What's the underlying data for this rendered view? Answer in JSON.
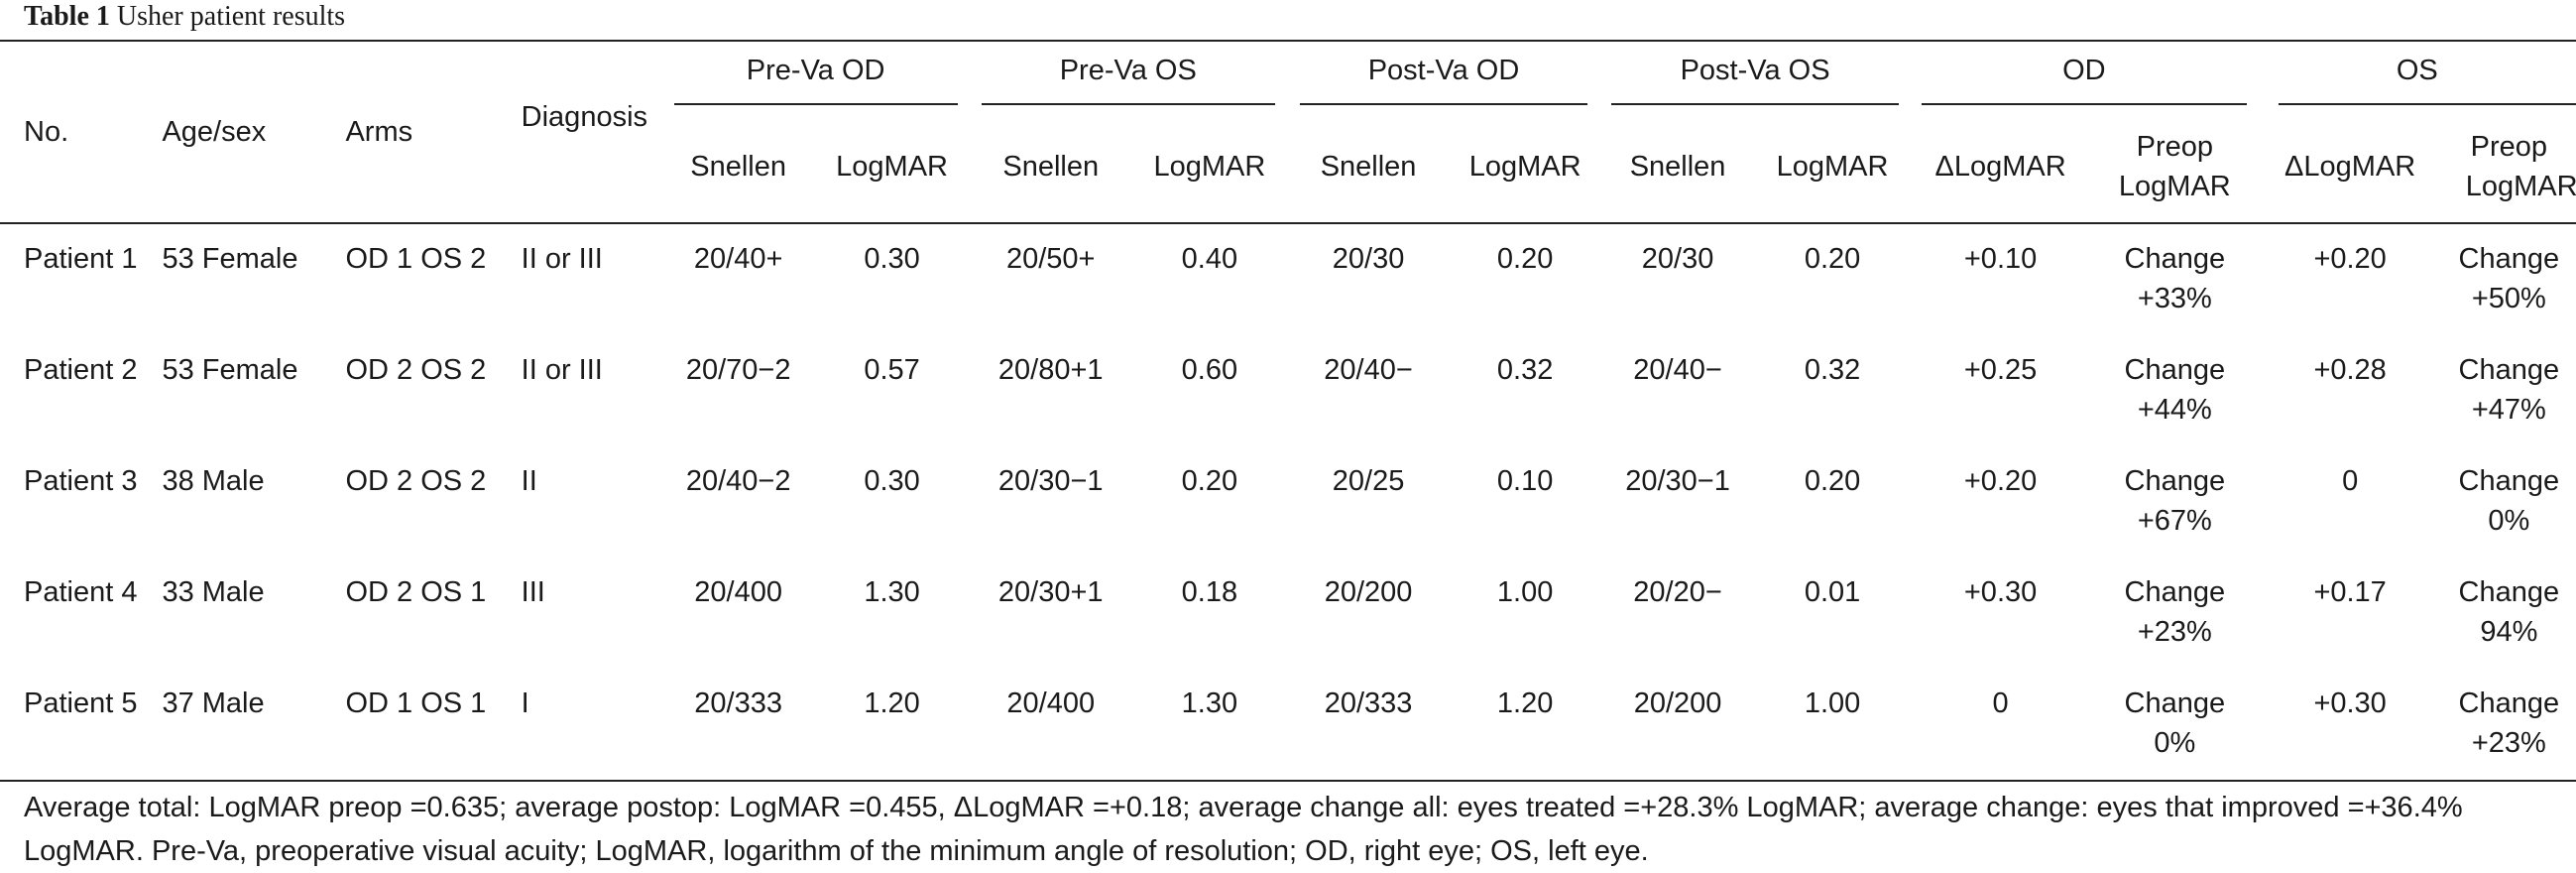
{
  "caption": {
    "number": "Table 1",
    "title": "Usher patient results"
  },
  "headers": {
    "no": "No.",
    "age_sex": "Age/sex",
    "arms": "Arms",
    "diagnosis": "Diagnosis",
    "groups": [
      "Pre-Va OD",
      "Pre-Va OS",
      "Post-Va OD",
      "Post-Va OS",
      "OD",
      "OS"
    ],
    "subheaders": [
      "Snellen",
      "LogMAR",
      "Snellen",
      "LogMAR",
      "Snellen",
      "LogMAR",
      "Snellen",
      "LogMAR",
      "ΔLogMAR",
      "Preop LogMAR",
      "ΔLogMAR",
      "Preop LogMAR"
    ]
  },
  "rows": [
    {
      "no": "Patient 1",
      "age_sex": "53 Female",
      "arms": "OD 1 OS 2",
      "diagnosis": "II or III",
      "pre_od_snellen": "20/40+",
      "pre_od_logmar": "0.30",
      "pre_os_snellen": "20/50+",
      "pre_os_logmar": "0.40",
      "post_od_snellen": "20/30",
      "post_od_logmar": "0.20",
      "post_os_snellen": "20/30",
      "post_os_logmar": "0.20",
      "od_delta": "+0.10",
      "od_preop_1": "Change",
      "od_preop_2": "+33%",
      "os_delta": "+0.20",
      "os_preop_1": "Change",
      "os_preop_2": "+50%"
    },
    {
      "no": "Patient 2",
      "age_sex": "53 Female",
      "arms": "OD 2 OS 2",
      "diagnosis": "II or III",
      "pre_od_snellen": "20/70−2",
      "pre_od_logmar": "0.57",
      "pre_os_snellen": "20/80+1",
      "pre_os_logmar": "0.60",
      "post_od_snellen": "20/40−",
      "post_od_logmar": "0.32",
      "post_os_snellen": "20/40−",
      "post_os_logmar": "0.32",
      "od_delta": "+0.25",
      "od_preop_1": "Change",
      "od_preop_2": "+44%",
      "os_delta": "+0.28",
      "os_preop_1": "Change",
      "os_preop_2": "+47%"
    },
    {
      "no": "Patient 3",
      "age_sex": "38 Male",
      "arms": "OD 2 OS 2",
      "diagnosis": "II",
      "pre_od_snellen": "20/40−2",
      "pre_od_logmar": "0.30",
      "pre_os_snellen": "20/30−1",
      "pre_os_logmar": "0.20",
      "post_od_snellen": "20/25",
      "post_od_logmar": "0.10",
      "post_os_snellen": "20/30−1",
      "post_os_logmar": "0.20",
      "od_delta": "+0.20",
      "od_preop_1": "Change",
      "od_preop_2": "+67%",
      "os_delta": "0",
      "os_preop_1": "Change",
      "os_preop_2": "0%"
    },
    {
      "no": "Patient 4",
      "age_sex": "33 Male",
      "arms": "OD 2 OS 1",
      "diagnosis": "III",
      "pre_od_snellen": "20/400",
      "pre_od_logmar": "1.30",
      "pre_os_snellen": "20/30+1",
      "pre_os_logmar": "0.18",
      "post_od_snellen": "20/200",
      "post_od_logmar": "1.00",
      "post_os_snellen": "20/20−",
      "post_os_logmar": "0.01",
      "od_delta": "+0.30",
      "od_preop_1": "Change",
      "od_preop_2": "+23%",
      "os_delta": "+0.17",
      "os_preop_1": "Change",
      "os_preop_2": "94%"
    },
    {
      "no": "Patient 5",
      "age_sex": "37 Male",
      "arms": "OD 1 OS 1",
      "diagnosis": "I",
      "pre_od_snellen": "20/333",
      "pre_od_logmar": "1.20",
      "pre_os_snellen": "20/400",
      "pre_os_logmar": "1.30",
      "post_od_snellen": "20/333",
      "post_od_logmar": "1.20",
      "post_os_snellen": "20/200",
      "post_os_logmar": "1.00",
      "od_delta": "0",
      "od_preop_1": "Change",
      "od_preop_2": "0%",
      "os_delta": "+0.30",
      "os_preop_1": "Change",
      "os_preop_2": "+23%"
    }
  ],
  "footnote": "Average total: LogMAR preop =0.635; average postop: LogMAR =0.455, ΔLogMAR =+0.18; average change all: eyes treated =+28.3% LogMAR; average change: eyes that improved =+36.4% LogMAR. Pre-Va, preoperative visual acuity; LogMAR, logarithm of the minimum angle of resolution; OD, right eye; OS, left eye."
}
